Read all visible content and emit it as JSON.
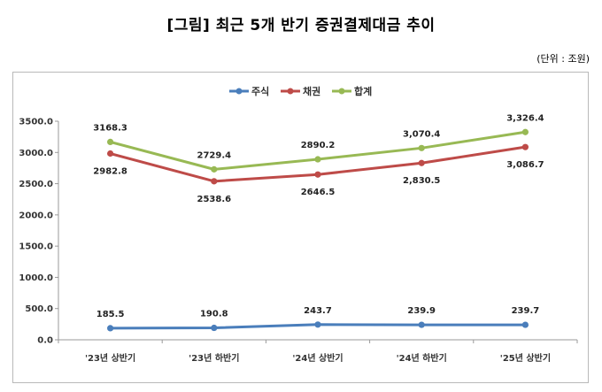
{
  "title": "[그림] 최근 5개 반기 증권결제대금 추이",
  "unit_note": "(단위 : 조원)",
  "chart_data": {
    "type": "line",
    "categories": [
      "'23년 상반기",
      "'23년 하반기",
      "'24년 상반기",
      "'24년 하반기",
      "'25년 상반기"
    ],
    "ylim": [
      0,
      3500
    ],
    "yticks": [
      "0.0",
      "500.0",
      "1000.0",
      "1500.0",
      "2000.0",
      "2500.0",
      "3000.0",
      "3500.0"
    ],
    "grid": false,
    "legend_position": "top",
    "series": [
      {
        "name": "주식",
        "color": "#4a7ebb",
        "values": [
          185.5,
          190.8,
          243.7,
          239.9,
          239.7
        ],
        "labels": [
          "185.5",
          "190.8",
          "243.7",
          "239.9",
          "239.7"
        ]
      },
      {
        "name": "채권",
        "color": "#be4b48",
        "values": [
          2982.8,
          2538.6,
          2646.5,
          2830.5,
          3086.7
        ],
        "labels": [
          "2982.8",
          "2538.6",
          "2646.5",
          "2,830.5",
          "3,086.7"
        ]
      },
      {
        "name": "합계",
        "color": "#98b954",
        "values": [
          3168.3,
          2729.4,
          2890.2,
          3070.4,
          3326.4
        ],
        "labels": [
          "3168.3",
          "2729.4",
          "2890.2",
          "3,070.4",
          "3,326.4"
        ]
      }
    ]
  }
}
